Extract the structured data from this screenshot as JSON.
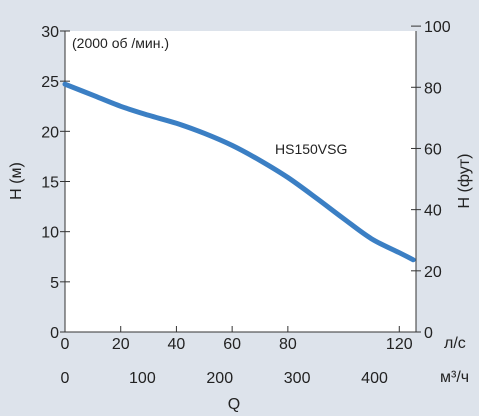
{
  "chart_data": {
    "type": "line",
    "title": "",
    "annotation": "(2000 об /мин.)",
    "series": [
      {
        "name": "HS150VSG",
        "color": "#3b7fc4",
        "x": [
          0,
          10,
          20,
          30,
          40,
          50,
          60,
          70,
          80,
          90,
          100,
          110,
          120,
          125
        ],
        "y": [
          24.7,
          23.6,
          22.5,
          21.6,
          20.8,
          19.8,
          18.6,
          17.1,
          15.4,
          13.4,
          11.3,
          9.3,
          7.9,
          7.2
        ]
      }
    ],
    "y_left": {
      "label": "H (м)",
      "ticks": [
        "0",
        "5",
        "10",
        "15",
        "20",
        "25",
        "30"
      ],
      "ylim": [
        0,
        30
      ]
    },
    "y_right": {
      "label": "H (фут)",
      "ticks": [
        "0",
        "20",
        "40",
        "60",
        "80",
        "100"
      ],
      "ylim": [
        0,
        98.4
      ]
    },
    "x_top": {
      "unit": "л/с",
      "ticks": [
        "0",
        "20",
        "40",
        "60",
        "80",
        "120"
      ],
      "tick_values": [
        0,
        20,
        40,
        60,
        80,
        120
      ],
      "xlim": [
        0,
        126
      ]
    },
    "x_bottom": {
      "unit": "м³/ч",
      "ticks": [
        "0",
        "100",
        "200",
        "300",
        "400"
      ],
      "tick_values": [
        0,
        100,
        200,
        300,
        400
      ],
      "xlim": [
        0,
        453.6
      ]
    },
    "xlabel": "Q",
    "grid": false,
    "frame_color": "#ffffff",
    "plot_background": "#ffffff",
    "page_background": "#dde3eb"
  }
}
